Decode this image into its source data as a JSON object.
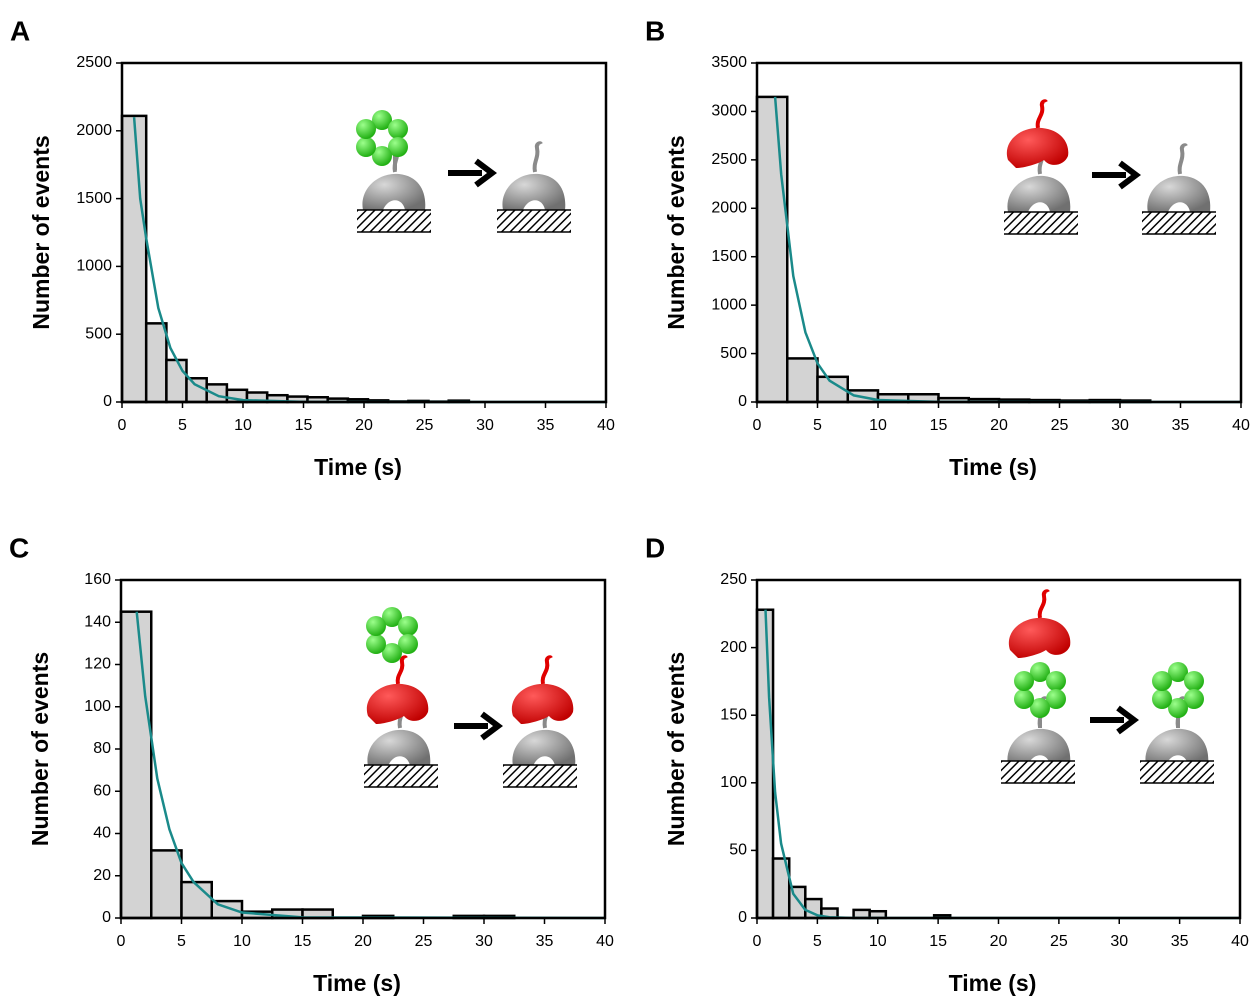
{
  "chart_data": [
    {
      "type": "histogram",
      "panel": "A",
      "xlabel": "Time (s)",
      "ylabel": "Number of events",
      "bins": [
        0,
        2,
        3.67,
        5.33,
        7,
        8.67,
        10.33,
        12,
        13.67,
        15.33,
        17,
        18.67,
        20.33,
        22,
        23.67,
        25.33,
        27,
        28.67
      ],
      "counts": [
        2110,
        580,
        310,
        175,
        130,
        90,
        70,
        50,
        40,
        35,
        25,
        20,
        12,
        4,
        8,
        3,
        10
      ],
      "color": "#d3d3d3",
      "edge_color": "#000000",
      "fit": {
        "color": "#1a8a8a",
        "x": [
          1,
          1.5,
          2,
          3,
          4,
          5,
          6,
          8,
          10,
          15,
          20,
          40
        ],
        "values": [
          2100,
          1500,
          1207,
          693,
          398,
          229,
          131,
          43,
          14,
          1,
          0,
          0
        ]
      },
      "xlim": [
        0,
        40
      ],
      "ylim": [
        0,
        2500
      ],
      "xticks": [
        0,
        5,
        10,
        15,
        20,
        25,
        30,
        35,
        40
      ],
      "yticks": [
        0,
        500,
        1000,
        1500,
        2000,
        2500
      ]
    },
    {
      "type": "histogram",
      "panel": "B",
      "xlabel": "Time (s)",
      "ylabel": "Number of events",
      "bins": [
        0,
        2.5,
        5,
        7.5,
        10,
        12.5,
        15,
        17.5,
        20,
        22.5,
        25,
        27.5,
        30,
        32.5
      ],
      "counts": [
        3150,
        450,
        260,
        120,
        80,
        80,
        40,
        30,
        25,
        20,
        15,
        20,
        15
      ],
      "color": "#d3d3d3",
      "edge_color": "#000000",
      "fit": {
        "color": "#1a8a8a",
        "x": [
          1.5,
          2,
          3,
          4,
          5,
          6,
          8,
          10,
          15,
          40
        ],
        "values": [
          3150,
          2350,
          1300,
          720,
          400,
          220,
          68,
          21,
          1,
          0
        ]
      },
      "xlim": [
        0,
        40
      ],
      "ylim": [
        0,
        3500
      ],
      "xticks": [
        0,
        5,
        10,
        15,
        20,
        25,
        30,
        35,
        40
      ],
      "yticks": [
        0,
        500,
        1000,
        1500,
        2000,
        2500,
        3000,
        3500
      ]
    },
    {
      "type": "histogram",
      "panel": "C",
      "xlabel": "Time (s)",
      "ylabel": "Number of events",
      "bins": [
        0,
        2.5,
        5,
        7.5,
        10,
        12.5,
        15,
        17.5,
        20,
        22.5,
        25,
        27.5,
        30,
        32.5
      ],
      "counts": [
        145,
        32,
        17,
        8,
        3,
        4,
        4,
        0,
        1,
        0,
        0,
        1,
        1
      ],
      "color": "#d3d3d3",
      "edge_color": "#000000",
      "fit": {
        "color": "#1a8a8a",
        "x": [
          1.3,
          2,
          3,
          4,
          5,
          6,
          8,
          10,
          15,
          40
        ],
        "values": [
          145,
          105,
          66,
          42,
          26,
          17,
          6.5,
          2.6,
          0.3,
          0
        ]
      },
      "xlim": [
        0,
        40
      ],
      "ylim": [
        0,
        160
      ],
      "xticks": [
        0,
        5,
        10,
        15,
        20,
        25,
        30,
        35,
        40
      ],
      "yticks": [
        0,
        20,
        40,
        60,
        80,
        100,
        120,
        140,
        160
      ]
    },
    {
      "type": "histogram",
      "panel": "D",
      "xlabel": "Time (s)",
      "ylabel": "Number of events",
      "bins": [
        0,
        1.33,
        2.67,
        4,
        5.33,
        6.67,
        8,
        9.33,
        10.67,
        12,
        13.33,
        14.67,
        16
      ],
      "counts": [
        228,
        44,
        23,
        14,
        7,
        0,
        6,
        5,
        0,
        0,
        0,
        2
      ],
      "color": "#d3d3d3",
      "edge_color": "#000000",
      "fit": {
        "color": "#1a8a8a",
        "x": [
          0.7,
          1,
          1.5,
          2,
          3,
          4,
          5,
          6,
          8,
          40
        ],
        "values": [
          228,
          163,
          93,
          55,
          18,
          6,
          2,
          0.6,
          0,
          0
        ]
      },
      "xlim": [
        0,
        40
      ],
      "ylim": [
        0,
        250
      ],
      "xticks": [
        0,
        5,
        10,
        15,
        20,
        25,
        30,
        35,
        40
      ],
      "yticks": [
        0,
        50,
        100,
        150,
        200,
        250
      ]
    }
  ]
}
